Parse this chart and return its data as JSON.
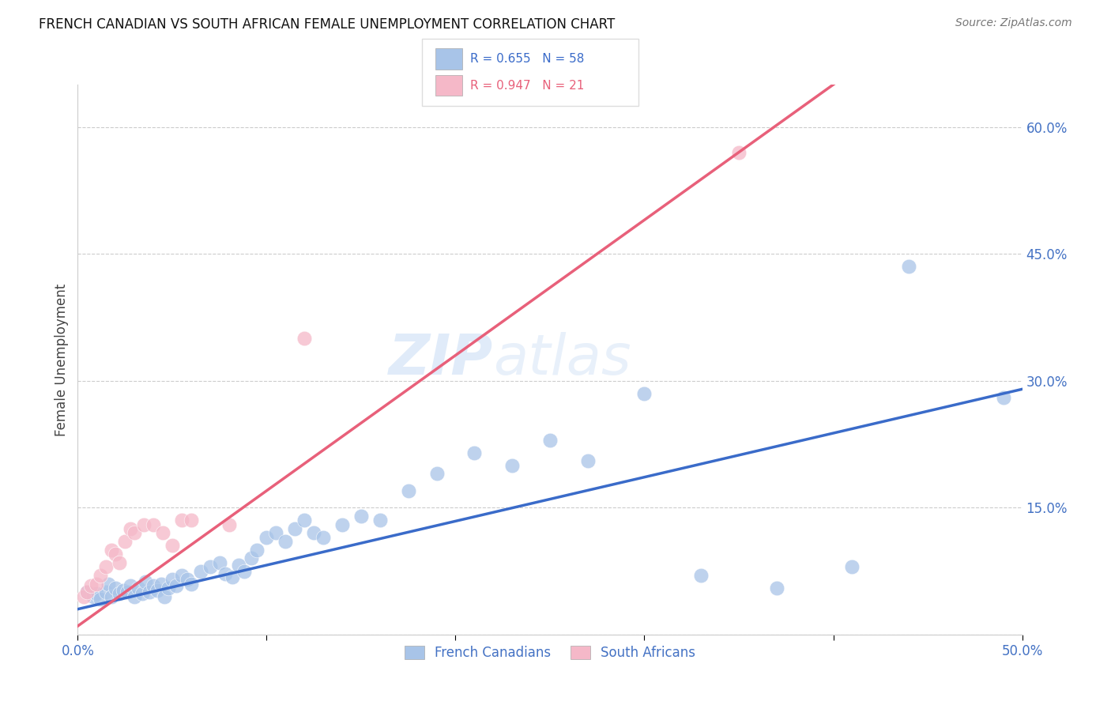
{
  "title": "FRENCH CANADIAN VS SOUTH AFRICAN FEMALE UNEMPLOYMENT CORRELATION CHART",
  "source": "Source: ZipAtlas.com",
  "ylabel": "Female Unemployment",
  "xlim": [
    0,
    0.5
  ],
  "ylim": [
    0,
    0.65
  ],
  "xticks": [
    0.0,
    0.1,
    0.2,
    0.3,
    0.4,
    0.5
  ],
  "xtick_labels_show": [
    "0.0%",
    "",
    "",
    "",
    "",
    "50.0%"
  ],
  "yticks": [
    0.0,
    0.15,
    0.3,
    0.45,
    0.6
  ],
  "ytick_labels": [
    "",
    "15.0%",
    "30.0%",
    "45.0%",
    "60.0%"
  ],
  "blue_color": "#a8c4e8",
  "pink_color": "#f5b8c8",
  "blue_line_color": "#3a6bc9",
  "pink_line_color": "#e8607a",
  "watermark_zip": "ZIP",
  "watermark_atlas": "atlas",
  "background_color": "#ffffff",
  "grid_color": "#cccccc",
  "french_x": [
    0.005,
    0.008,
    0.01,
    0.012,
    0.015,
    0.016,
    0.018,
    0.02,
    0.022,
    0.024,
    0.026,
    0.028,
    0.03,
    0.032,
    0.034,
    0.036,
    0.038,
    0.04,
    0.042,
    0.044,
    0.046,
    0.048,
    0.05,
    0.052,
    0.055,
    0.058,
    0.06,
    0.065,
    0.07,
    0.075,
    0.078,
    0.082,
    0.085,
    0.088,
    0.092,
    0.095,
    0.1,
    0.105,
    0.11,
    0.115,
    0.12,
    0.125,
    0.13,
    0.14,
    0.15,
    0.16,
    0.175,
    0.19,
    0.21,
    0.23,
    0.25,
    0.27,
    0.3,
    0.33,
    0.37,
    0.41,
    0.44,
    0.49
  ],
  "french_y": [
    0.05,
    0.045,
    0.048,
    0.042,
    0.05,
    0.06,
    0.045,
    0.055,
    0.048,
    0.052,
    0.05,
    0.058,
    0.045,
    0.055,
    0.048,
    0.062,
    0.05,
    0.058,
    0.052,
    0.06,
    0.045,
    0.055,
    0.065,
    0.058,
    0.07,
    0.065,
    0.06,
    0.075,
    0.08,
    0.085,
    0.072,
    0.068,
    0.082,
    0.075,
    0.09,
    0.1,
    0.115,
    0.12,
    0.11,
    0.125,
    0.135,
    0.12,
    0.115,
    0.13,
    0.14,
    0.135,
    0.17,
    0.19,
    0.215,
    0.2,
    0.23,
    0.205,
    0.285,
    0.07,
    0.055,
    0.08,
    0.435,
    0.28
  ],
  "south_x": [
    0.003,
    0.005,
    0.007,
    0.01,
    0.012,
    0.015,
    0.018,
    0.02,
    0.022,
    0.025,
    0.028,
    0.03,
    0.035,
    0.04,
    0.045,
    0.05,
    0.055,
    0.06,
    0.08,
    0.12,
    0.35
  ],
  "south_y": [
    0.045,
    0.05,
    0.058,
    0.06,
    0.07,
    0.08,
    0.1,
    0.095,
    0.085,
    0.11,
    0.125,
    0.12,
    0.13,
    0.13,
    0.12,
    0.105,
    0.135,
    0.135,
    0.13,
    0.35,
    0.57
  ],
  "blue_intercept": 0.03,
  "blue_slope": 0.52,
  "pink_intercept": 0.01,
  "pink_slope": 1.6
}
